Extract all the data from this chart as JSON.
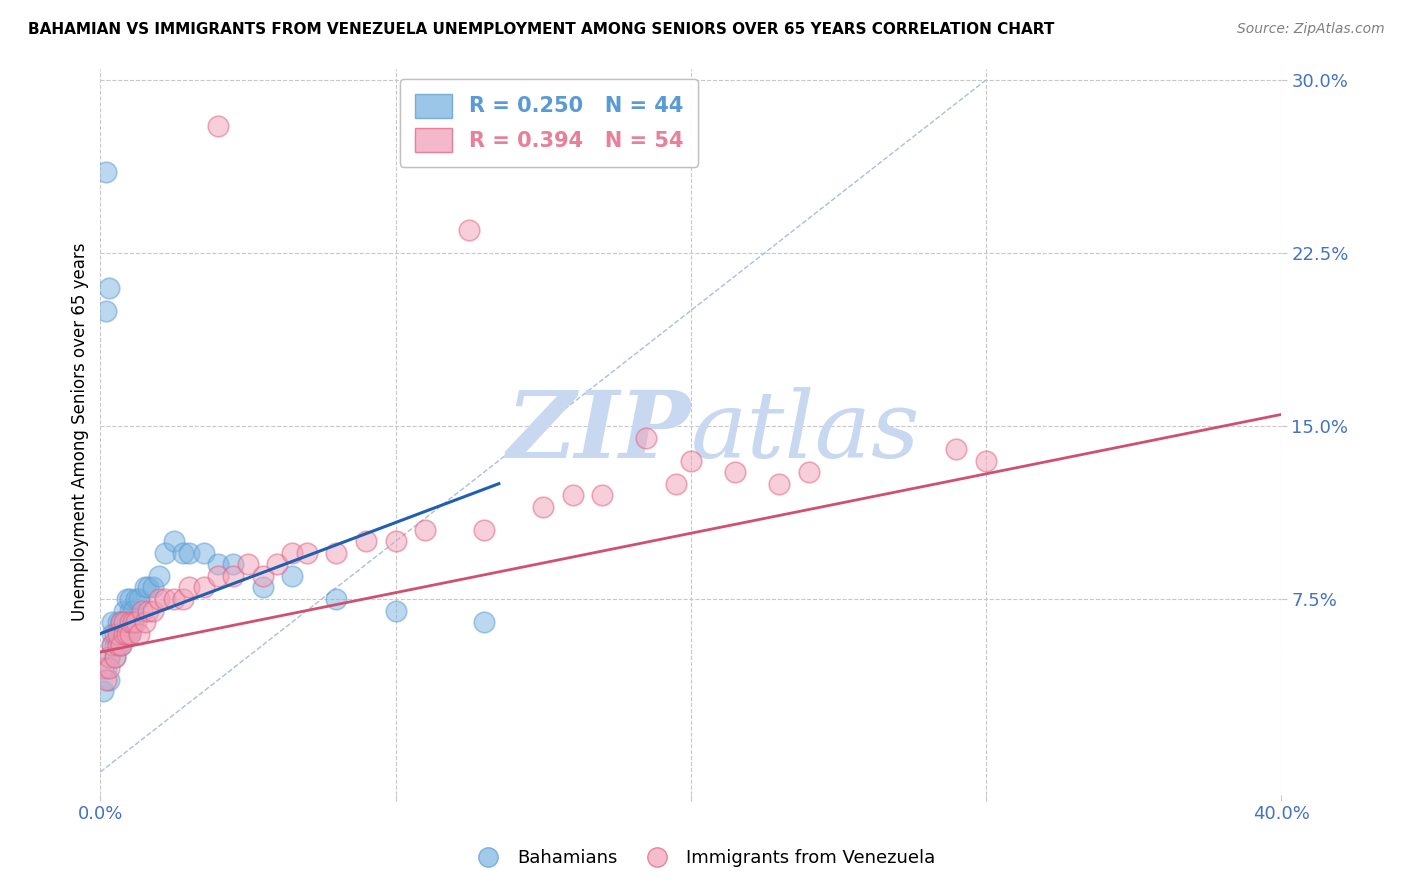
{
  "title": "BAHAMIAN VS IMMIGRANTS FROM VENEZUELA UNEMPLOYMENT AMONG SENIORS OVER 65 YEARS CORRELATION CHART",
  "source": "Source: ZipAtlas.com",
  "ylabel": "Unemployment Among Seniors over 65 years",
  "xlim": [
    0.0,
    0.4
  ],
  "ylim": [
    -0.01,
    0.305
  ],
  "xticks": [
    0.0,
    0.1,
    0.2,
    0.3,
    0.4
  ],
  "xticklabels": [
    "0.0%",
    "",
    "",
    "",
    "40.0%"
  ],
  "yticks_right": [
    0.075,
    0.15,
    0.225,
    0.3
  ],
  "ytick_labels_right": [
    "7.5%",
    "15.0%",
    "22.5%",
    "30.0%"
  ],
  "grid_color": "#c8c8c8",
  "watermark_zip": "ZIP",
  "watermark_atlas": "atlas",
  "watermark_color": "#c8d8f0",
  "legend_entries": [
    {
      "label": "R = 0.250   N = 44",
      "color": "#5b9bd5"
    },
    {
      "label": "R = 0.394   N = 54",
      "color": "#e8809a"
    }
  ],
  "blue_scatter_color": "#7ab3e0",
  "pink_scatter_color": "#f0a0b8",
  "blue_scatter_edge": "#5b9bd5",
  "pink_scatter_edge": "#e06080",
  "blue_line_color": "#2060b0",
  "pink_line_color": "#d05070",
  "diag_line_color": "#a0b8d8",
  "title_fontsize": 11,
  "tick_label_color": "#4472c4",
  "source_color": "#808080",
  "blue_scatter_x": [
    0.001,
    0.002,
    0.002,
    0.003,
    0.003,
    0.004,
    0.004,
    0.004,
    0.005,
    0.005,
    0.006,
    0.006,
    0.007,
    0.007,
    0.007,
    0.008,
    0.008,
    0.009,
    0.009,
    0.01,
    0.01,
    0.01,
    0.011,
    0.011,
    0.012,
    0.013,
    0.015,
    0.016,
    0.018,
    0.02,
    0.022,
    0.025,
    0.028,
    0.03,
    0.035,
    0.04,
    0.045,
    0.055,
    0.065,
    0.08,
    0.1,
    0.13,
    0.002,
    0.003
  ],
  "blue_scatter_y": [
    0.035,
    0.26,
    0.045,
    0.05,
    0.04,
    0.055,
    0.06,
    0.065,
    0.05,
    0.055,
    0.06,
    0.065,
    0.06,
    0.055,
    0.065,
    0.06,
    0.07,
    0.065,
    0.075,
    0.06,
    0.07,
    0.075,
    0.065,
    0.07,
    0.075,
    0.075,
    0.08,
    0.08,
    0.08,
    0.085,
    0.095,
    0.1,
    0.095,
    0.095,
    0.095,
    0.09,
    0.09,
    0.08,
    0.085,
    0.075,
    0.07,
    0.065,
    0.2,
    0.21
  ],
  "pink_scatter_x": [
    0.001,
    0.002,
    0.003,
    0.003,
    0.004,
    0.005,
    0.005,
    0.006,
    0.006,
    0.007,
    0.007,
    0.008,
    0.008,
    0.009,
    0.01,
    0.01,
    0.011,
    0.012,
    0.013,
    0.014,
    0.015,
    0.016,
    0.018,
    0.02,
    0.022,
    0.025,
    0.028,
    0.03,
    0.035,
    0.04,
    0.045,
    0.05,
    0.055,
    0.06,
    0.065,
    0.07,
    0.08,
    0.09,
    0.1,
    0.11,
    0.13,
    0.15,
    0.16,
    0.17,
    0.185,
    0.195,
    0.2,
    0.215,
    0.23,
    0.24,
    0.29,
    0.3,
    0.04,
    0.125
  ],
  "pink_scatter_y": [
    0.045,
    0.04,
    0.05,
    0.045,
    0.055,
    0.05,
    0.06,
    0.055,
    0.06,
    0.055,
    0.065,
    0.06,
    0.065,
    0.06,
    0.06,
    0.065,
    0.065,
    0.065,
    0.06,
    0.07,
    0.065,
    0.07,
    0.07,
    0.075,
    0.075,
    0.075,
    0.075,
    0.08,
    0.08,
    0.085,
    0.085,
    0.09,
    0.085,
    0.09,
    0.095,
    0.095,
    0.095,
    0.1,
    0.1,
    0.105,
    0.105,
    0.115,
    0.12,
    0.12,
    0.145,
    0.125,
    0.135,
    0.13,
    0.125,
    0.13,
    0.14,
    0.135,
    0.28,
    0.235
  ],
  "blue_line_x": [
    0.0,
    0.135
  ],
  "blue_line_y": [
    0.06,
    0.125
  ],
  "pink_line_x": [
    0.0,
    0.4
  ],
  "pink_line_y": [
    0.052,
    0.155
  ]
}
